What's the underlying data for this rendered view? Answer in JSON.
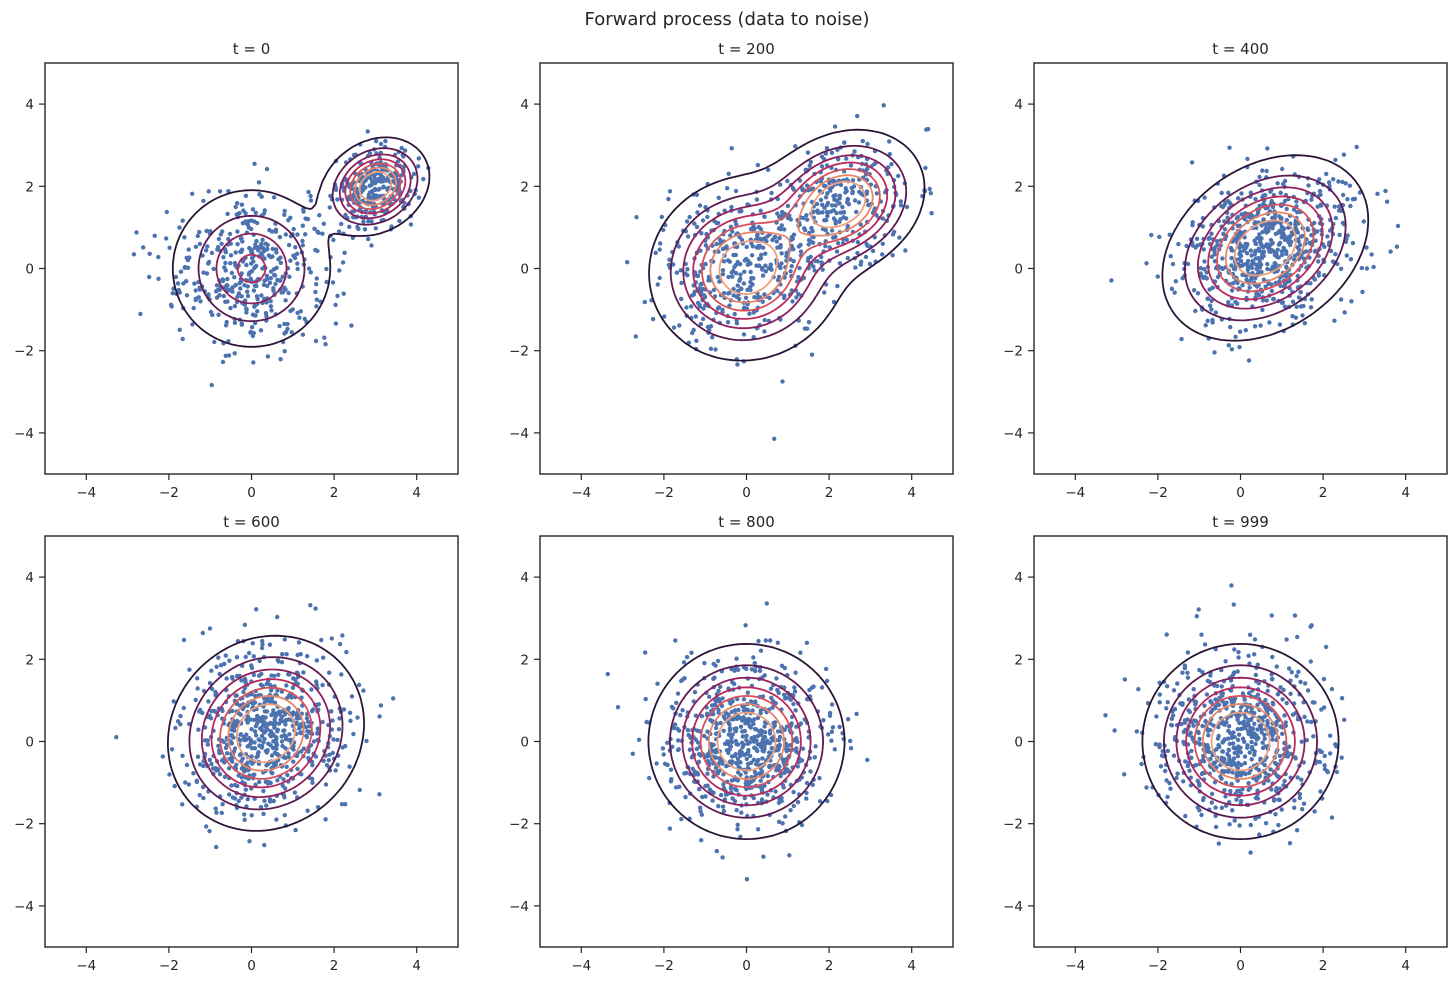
{
  "figure_title": "Forward process (data to noise)",
  "chart_data": {
    "type": "scatter",
    "subtype": "scatter with kernel density contours",
    "point_color": "#4c72b0",
    "contour_colors": [
      "#2a1436",
      "#5a1a4e",
      "#8c1f5a",
      "#b9285b",
      "#d9505a",
      "#e88566",
      "#efa07c"
    ],
    "xlim": [
      -5,
      5
    ],
    "ylim": [
      -5,
      5
    ],
    "xticks": [
      -4,
      -2,
      0,
      2,
      4
    ],
    "yticks": [
      -4,
      -2,
      0,
      2,
      4
    ],
    "points_per_panel": 700,
    "panels": [
      {
        "title": "t = 0",
        "mixture": [
          {
            "weight": 0.6,
            "mean": [
              0.0,
              0.0
            ],
            "sd": [
              0.95,
              0.95
            ],
            "rho": 0.0
          },
          {
            "weight": 0.4,
            "mean": [
              3.0,
              2.0
            ],
            "sd": [
              0.55,
              0.5
            ],
            "rho": 0.2
          }
        ]
      },
      {
        "title": "t = 200",
        "mixture": [
          {
            "weight": 0.6,
            "mean": [
              0.0,
              0.0
            ],
            "sd": [
              1.0,
              0.95
            ],
            "rho": 0.05
          },
          {
            "weight": 0.4,
            "mean": [
              2.3,
              1.6
            ],
            "sd": [
              0.85,
              0.75
            ],
            "rho": 0.2
          }
        ]
      },
      {
        "title": "t = 400",
        "mixture": [
          {
            "weight": 1.0,
            "mean": [
              0.6,
              0.5
            ],
            "sd": [
              1.05,
              0.95
            ],
            "rho": 0.3
          }
        ]
      },
      {
        "title": "t = 600",
        "mixture": [
          {
            "weight": 1.0,
            "mean": [
              0.35,
              0.2
            ],
            "sd": [
              1.0,
              1.0
            ],
            "rho": 0.1
          }
        ]
      },
      {
        "title": "t = 800",
        "mixture": [
          {
            "weight": 1.0,
            "mean": [
              0.0,
              0.0
            ],
            "sd": [
              1.0,
              1.0
            ],
            "rho": 0.0
          }
        ]
      },
      {
        "title": "t = 999",
        "mixture": [
          {
            "weight": 1.0,
            "mean": [
              0.0,
              0.0
            ],
            "sd": [
              1.0,
              1.0
            ],
            "rho": 0.0
          }
        ]
      }
    ]
  }
}
